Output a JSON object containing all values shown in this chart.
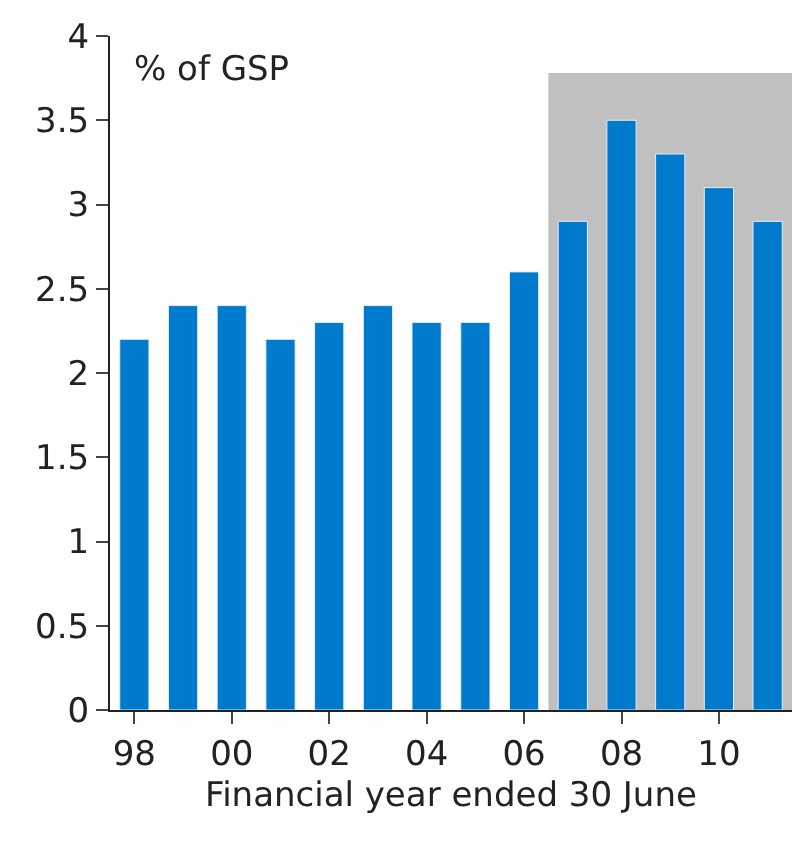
{
  "chart_data": {
    "type": "bar",
    "ylabel": "% of GSP",
    "xlabel": "Financial year ended 30 June",
    "x": [
      1998,
      1999,
      2000,
      2001,
      2002,
      2003,
      2004,
      2005,
      2006,
      2007,
      2008,
      2009,
      2010,
      2011
    ],
    "values": [
      2.2,
      2.4,
      2.4,
      2.2,
      2.3,
      2.4,
      2.3,
      2.3,
      2.6,
      2.9,
      3.5,
      3.3,
      3.1,
      2.9
    ],
    "color": "#007acc",
    "xlim": [
      1997.5,
      2011.5
    ],
    "xticks": [
      {
        "value": 1998,
        "label": "98"
      },
      {
        "value": 2000,
        "label": "00"
      },
      {
        "value": 2002,
        "label": "02"
      },
      {
        "value": 2004,
        "label": "04"
      },
      {
        "value": 2006,
        "label": "06"
      },
      {
        "value": 2008,
        "label": "08"
      },
      {
        "value": 2010,
        "label": "10"
      }
    ],
    "ylim": [
      0,
      4
    ],
    "yticks": [
      0,
      0.5,
      1,
      1.5,
      2,
      2.5,
      3,
      3.5,
      4
    ],
    "bands": [
      {
        "axis": "x",
        "from": 2006.5,
        "to": 2011.5,
        "color": "#c0c0c0"
      }
    ]
  }
}
